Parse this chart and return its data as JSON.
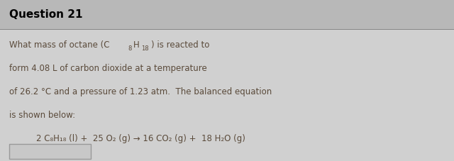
{
  "title": "Question 21",
  "bg_color": "#d0d0d0",
  "header_bg": "#b8b8b8",
  "content_bg": "#d0d0d0",
  "title_color": "#000000",
  "text_color": "#5a4a3a",
  "line2": "form 4.08 L of carbon dioxide at a temperature",
  "line3": "of 26.2 °C and a pressure of 1.23 atm.  The balanced equation",
  "line4": "is shown below:",
  "equation": "2 C₈H₁₈ (l) +  25 O₂ (g) → 16 CO₂ (g) +  18 H₂O (g)",
  "figsize": [
    6.4,
    2.27
  ],
  "dpi": 100
}
